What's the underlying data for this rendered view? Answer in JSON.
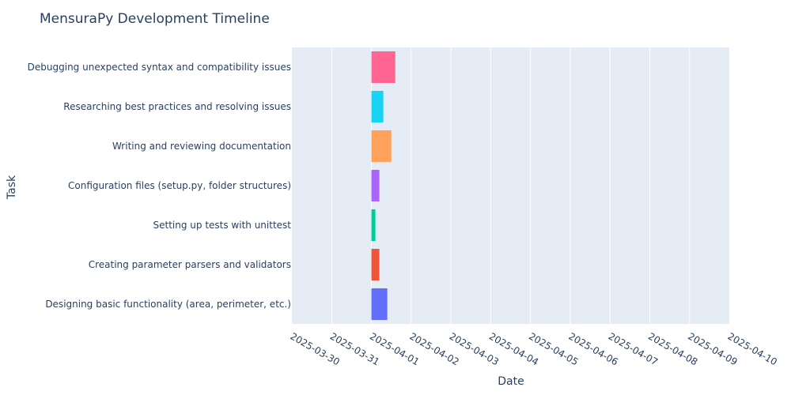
{
  "chart_data": {
    "type": "bar",
    "orientation": "horizontal",
    "title": "MensuraPy Development Timeline",
    "xlabel": "Date",
    "ylabel": "Task",
    "xlim": [
      "2025-03-30",
      "2025-04-10"
    ],
    "xticks": [
      "2025-03-30",
      "2025-03-31",
      "2025-04-01",
      "2025-04-02",
      "2025-04-03",
      "2025-04-04",
      "2025-04-05",
      "2025-04-06",
      "2025-04-07",
      "2025-04-08",
      "2025-04-09",
      "2025-04-10"
    ],
    "grid": true,
    "legend": "none",
    "tasks": [
      {
        "name": "Designing basic functionality (area, perimeter, etc.)",
        "start": "2025-04-01 00:00",
        "end": "2025-04-01 09:36",
        "color": "#636efa"
      },
      {
        "name": "Creating parameter parsers and validators",
        "start": "2025-04-01 00:00",
        "end": "2025-04-01 04:48",
        "color": "#EF553B"
      },
      {
        "name": "Setting up tests with unittest",
        "start": "2025-04-01 00:00",
        "end": "2025-04-01 02:24",
        "color": "#00cc96"
      },
      {
        "name": "Configuration files (setup.py, folder structures)",
        "start": "2025-04-01 00:00",
        "end": "2025-04-01 04:48",
        "color": "#ab63fa"
      },
      {
        "name": "Writing and reviewing documentation",
        "start": "2025-04-01 00:00",
        "end": "2025-04-01 12:00",
        "color": "#FFA15A"
      },
      {
        "name": "Researching best practices and resolving issues",
        "start": "2025-04-01 00:00",
        "end": "2025-04-01 07:12",
        "color": "#19d3f3"
      },
      {
        "name": "Debugging unexpected syntax and compatibility issues",
        "start": "2025-04-01 00:00",
        "end": "2025-04-01 14:24",
        "color": "#FF6692"
      }
    ]
  },
  "colors": {
    "plot_background": "#e5ecf6",
    "grid": "#ffffff",
    "text": "#2a3f5f"
  }
}
